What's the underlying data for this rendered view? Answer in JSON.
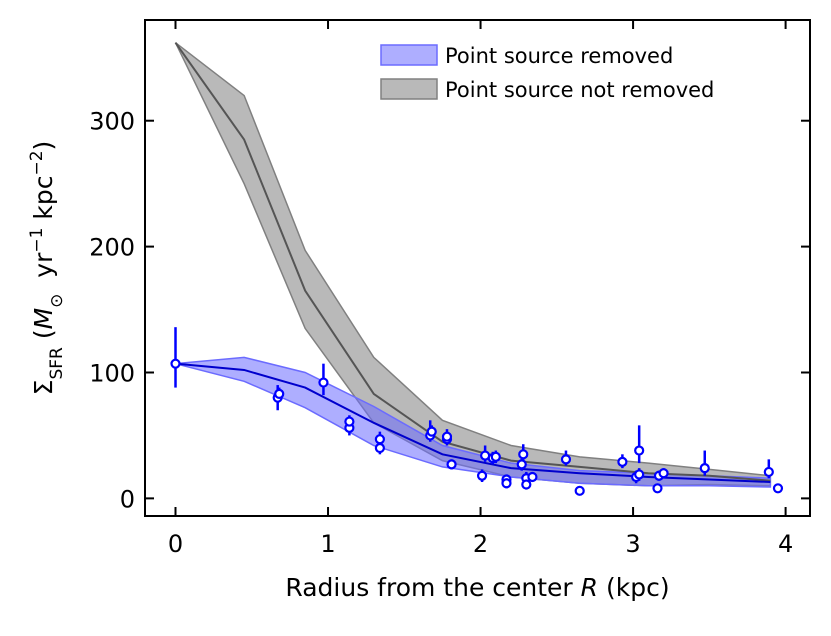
{
  "chart_data": {
    "type": "band",
    "xlabel_parts": [
      {
        "text": "Radius from the center "
      },
      {
        "text": "R",
        "italic": true
      },
      {
        "text": " (kpc)"
      }
    ],
    "ylabel_parts": [
      {
        "text": "Σ"
      },
      {
        "text": "SFR",
        "sub": true
      },
      {
        "text": " ("
      },
      {
        "text": "M",
        "italic": true
      },
      {
        "text": "⊙",
        "sub": true
      },
      {
        "text": "  yr"
      },
      {
        "text": "−1",
        "sup": true
      },
      {
        "text": " kpc"
      },
      {
        "text": "−2",
        "sup": true
      },
      {
        "text": ")"
      }
    ],
    "xlim": [
      -0.2,
      4.16
    ],
    "ylim": [
      -14,
      380
    ],
    "xticks": [
      0,
      1,
      2,
      3,
      4
    ],
    "yticks": [
      0,
      100,
      200,
      300
    ],
    "legend": "upper right",
    "bands": [
      {
        "name": "Point source not removed",
        "color": "#808080",
        "line_color": "#555555",
        "x": [
          0,
          0.45,
          0.85,
          1.3,
          1.75,
          2.2,
          2.65,
          3.1,
          3.5,
          3.9
        ],
        "upper": [
          362,
          320,
          197,
          112,
          62,
          42,
          33,
          28,
          23,
          18
        ],
        "values": [
          362,
          285,
          165,
          83,
          45,
          30,
          25,
          20,
          18,
          14
        ],
        "lower": [
          362,
          250,
          135,
          60,
          30,
          17,
          12,
          10,
          11,
          10
        ]
      },
      {
        "name": "Point source removed",
        "color": "#6b6bff",
        "line_color": "#0000cc",
        "x": [
          0,
          0.45,
          0.85,
          1.3,
          1.75,
          2.2,
          2.65,
          3.1,
          3.5,
          3.9
        ],
        "upper": [
          107,
          112,
          100,
          73,
          42,
          28,
          22,
          20,
          18,
          16
        ],
        "values": [
          107,
          102,
          88,
          60,
          35,
          24,
          20,
          17,
          15,
          13
        ],
        "lower": [
          107,
          93,
          72,
          42,
          25,
          17,
          12,
          10,
          10,
          9
        ]
      }
    ],
    "points": {
      "color": "#0000ff",
      "x": [
        0,
        0.67,
        0.68,
        0.97,
        1.14,
        1.14,
        1.34,
        1.34,
        1.67,
        1.68,
        1.78,
        1.78,
        1.81,
        2.01,
        2.03,
        2.08,
        2.1,
        2.17,
        2.17,
        2.27,
        2.28,
        2.3,
        2.3,
        2.34,
        2.56,
        2.65,
        2.93,
        3.02,
        3.04,
        3.04,
        3.16,
        3.17,
        3.2,
        3.47,
        3.89,
        3.95
      ],
      "values": [
        107,
        80,
        83,
        92,
        56,
        61,
        47,
        40,
        50,
        53,
        47,
        49,
        27,
        18,
        34,
        32,
        33,
        15,
        12,
        27,
        35,
        16,
        11,
        17,
        31,
        6,
        29,
        17,
        38,
        19,
        8,
        18,
        20,
        24,
        21,
        8
      ],
      "yerr_low": [
        19,
        10,
        5,
        10,
        6,
        5,
        6,
        5,
        5,
        5,
        5,
        4,
        4,
        5,
        5,
        5,
        5,
        4,
        4,
        5,
        5,
        5,
        4,
        4,
        5,
        3,
        5,
        5,
        10,
        5,
        3,
        4,
        4,
        6,
        5,
        3
      ],
      "yerr_high": [
        29,
        10,
        5,
        15,
        6,
        5,
        6,
        5,
        12,
        5,
        8,
        4,
        4,
        5,
        8,
        5,
        5,
        4,
        4,
        5,
        8,
        5,
        4,
        4,
        7,
        3,
        6,
        5,
        20,
        5,
        3,
        4,
        4,
        14,
        10,
        3
      ]
    }
  }
}
